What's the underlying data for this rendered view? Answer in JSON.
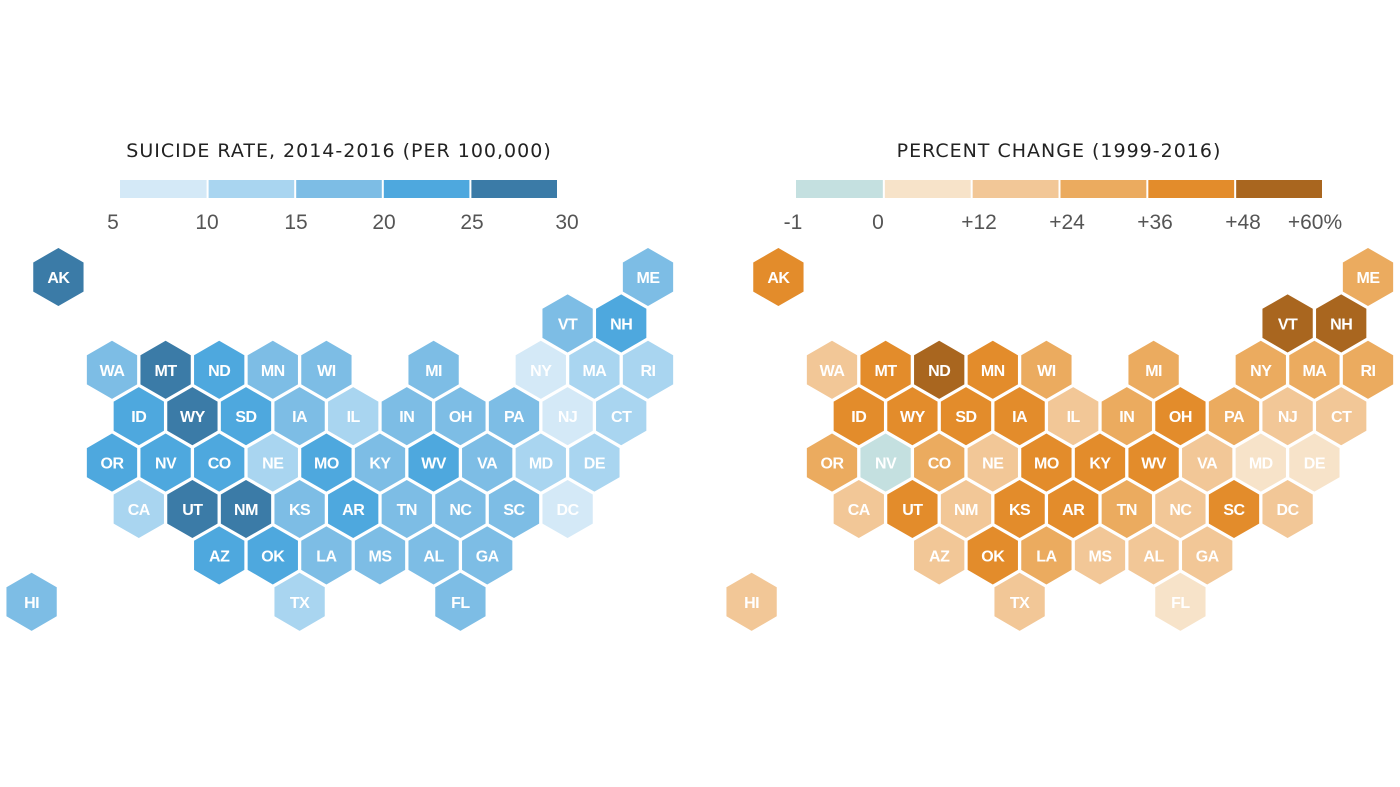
{
  "chart_data": [
    {
      "type": "heatmap",
      "subtype": "hex-tile-map",
      "title": "SUICIDE RATE, 2014-2016 (PER 100,000)",
      "legend": {
        "ticks": [
          "5",
          "10",
          "15",
          "20",
          "25",
          "30"
        ],
        "bins": [
          [
            5,
            10
          ],
          [
            10,
            15
          ],
          [
            15,
            20
          ],
          [
            20,
            25
          ],
          [
            25,
            30
          ]
        ],
        "colors": [
          "#d4e9f7",
          "#a9d5f0",
          "#7dbde5",
          "#4ea8de",
          "#3b7ba7"
        ],
        "placement": "top"
      },
      "states": {
        "AK": 4,
        "ME": 2,
        "VT": 2,
        "NH": 3,
        "WA": 2,
        "MT": 4,
        "ND": 3,
        "MN": 2,
        "WI": 2,
        "MI": 2,
        "NY": 0,
        "MA": 1,
        "RI": 1,
        "ID": 3,
        "WY": 4,
        "SD": 3,
        "IA": 2,
        "IL": 1,
        "IN": 2,
        "OH": 2,
        "PA": 2,
        "NJ": 0,
        "CT": 1,
        "OR": 3,
        "NV": 3,
        "CO": 3,
        "NE": 1,
        "MO": 3,
        "KY": 2,
        "WV": 3,
        "VA": 2,
        "MD": 1,
        "DE": 1,
        "CA": 1,
        "UT": 4,
        "NM": 4,
        "KS": 2,
        "AR": 3,
        "TN": 2,
        "NC": 2,
        "SC": 2,
        "DC": 0,
        "AZ": 3,
        "OK": 3,
        "LA": 2,
        "MS": 2,
        "AL": 2,
        "GA": 2,
        "HI": 2,
        "TX": 1,
        "FL": 2
      }
    },
    {
      "type": "heatmap",
      "subtype": "hex-tile-map",
      "title": "PERCENT CHANGE (1999-2016)",
      "legend": {
        "ticks": [
          "-1",
          "0",
          "+12",
          "+24",
          "+36",
          "+48",
          "+60%"
        ],
        "bins": [
          [
            -1,
            0
          ],
          [
            0,
            12
          ],
          [
            12,
            24
          ],
          [
            24,
            36
          ],
          [
            36,
            48
          ],
          [
            48,
            60
          ]
        ],
        "colors": [
          "#c4e0e0",
          "#f7e3c9",
          "#f2c797",
          "#ebab5f",
          "#e38c2b",
          "#a9661f"
        ],
        "placement": "top"
      },
      "states": {
        "AK": 4,
        "ME": 3,
        "VT": 5,
        "NH": 5,
        "WA": 2,
        "MT": 4,
        "ND": 5,
        "MN": 4,
        "WI": 3,
        "MI": 3,
        "NY": 3,
        "MA": 3,
        "RI": 3,
        "ID": 4,
        "WY": 4,
        "SD": 4,
        "IA": 4,
        "IL": 2,
        "IN": 3,
        "OH": 4,
        "PA": 3,
        "NJ": 2,
        "CT": 2,
        "OR": 3,
        "NV": 0,
        "CO": 3,
        "NE": 2,
        "MO": 4,
        "KY": 4,
        "WV": 4,
        "VA": 2,
        "MD": 1,
        "DE": 1,
        "CA": 2,
        "UT": 4,
        "NM": 2,
        "KS": 4,
        "AR": 4,
        "TN": 3,
        "NC": 2,
        "SC": 4,
        "DC": 2,
        "AZ": 2,
        "OK": 4,
        "LA": 3,
        "MS": 2,
        "AL": 2,
        "GA": 2,
        "HI": 2,
        "TX": 2,
        "FL": 1
      }
    }
  ]
}
